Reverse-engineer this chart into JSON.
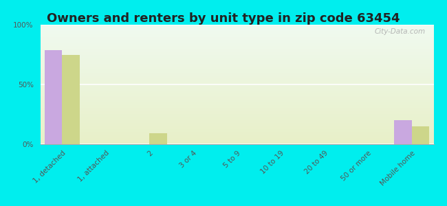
{
  "title": "Owners and renters by unit type in zip code 63454",
  "categories": [
    "1, detached",
    "1, attached",
    "2",
    "3 or 4",
    "5 to 9",
    "10 to 19",
    "20 to 49",
    "50 or more",
    "Mobile home"
  ],
  "owner_values": [
    79,
    0,
    0,
    0,
    0,
    0,
    0,
    0,
    20
  ],
  "renter_values": [
    75,
    0,
    9,
    0,
    0,
    0,
    0,
    0,
    15
  ],
  "owner_color": "#c9a8e0",
  "renter_color": "#cdd68a",
  "background_color": "#00eeee",
  "ylim": [
    0,
    100
  ],
  "yticks": [
    0,
    50,
    100
  ],
  "ytick_labels": [
    "0%",
    "50%",
    "100%"
  ],
  "bar_width": 0.4,
  "watermark": "City-Data.com",
  "title_fontsize": 13,
  "tick_fontsize": 7.5
}
